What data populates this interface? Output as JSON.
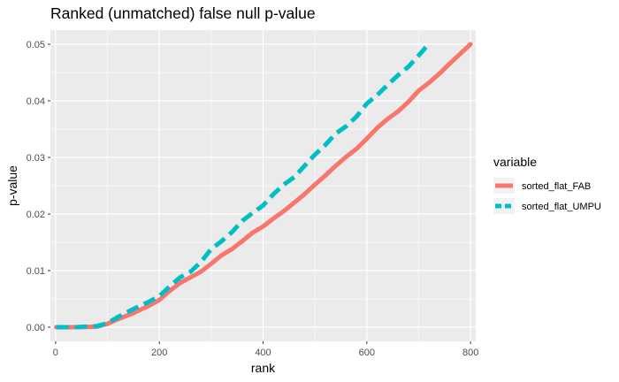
{
  "chart_data": {
    "type": "line",
    "title": "Ranked (unmatched) false null p-value",
    "xlabel": "rank",
    "ylabel": "p-value",
    "xlim": [
      -10,
      810
    ],
    "ylim": [
      -0.0025,
      0.0525
    ],
    "x_ticks": [
      0,
      200,
      400,
      600,
      800
    ],
    "x_tick_labels": [
      "0",
      "200",
      "400",
      "600",
      "800"
    ],
    "y_ticks": [
      0.0,
      0.01,
      0.02,
      0.03,
      0.04,
      0.05
    ],
    "y_tick_labels": [
      "0.00",
      "0.01",
      "0.02",
      "0.03",
      "0.04",
      "0.05"
    ],
    "grid": true,
    "legend": {
      "title": "variable",
      "position": "right"
    },
    "series": [
      {
        "name": "sorted_flat_FAB",
        "color": "#F8766D",
        "dash": "solid",
        "x": [
          1,
          40,
          80,
          100,
          120,
          150,
          180,
          200,
          220,
          240,
          260,
          280,
          300,
          320,
          340,
          360,
          380,
          400,
          420,
          440,
          460,
          480,
          500,
          520,
          540,
          560,
          580,
          600,
          620,
          640,
          660,
          680,
          700,
          720,
          740,
          760,
          780,
          800
        ],
        "y": [
          0.0,
          0.0,
          0.0001,
          0.0006,
          0.0014,
          0.0025,
          0.0038,
          0.0048,
          0.0064,
          0.0078,
          0.0088,
          0.0098,
          0.0112,
          0.0127,
          0.0138,
          0.0152,
          0.0167,
          0.0178,
          0.0192,
          0.0205,
          0.022,
          0.0235,
          0.0252,
          0.0268,
          0.0285,
          0.0301,
          0.0315,
          0.0333,
          0.0352,
          0.0368,
          0.0381,
          0.0398,
          0.0418,
          0.0432,
          0.0448,
          0.0466,
          0.0483,
          0.05
        ]
      },
      {
        "name": "sorted_flat_UMPU",
        "color": "#00BFC4",
        "dash": "dashed",
        "x": [
          1,
          40,
          80,
          100,
          120,
          150,
          180,
          200,
          220,
          240,
          260,
          280,
          300,
          320,
          340,
          360,
          380,
          400,
          420,
          440,
          460,
          480,
          500,
          520,
          540,
          560,
          580,
          600,
          620,
          640,
          660,
          680,
          700,
          715
        ],
        "y": [
          0.0,
          0.0,
          0.0002,
          0.0007,
          0.0018,
          0.0032,
          0.0045,
          0.0055,
          0.0072,
          0.0088,
          0.0098,
          0.0115,
          0.0138,
          0.0152,
          0.0168,
          0.0188,
          0.0202,
          0.0215,
          0.0235,
          0.0252,
          0.0265,
          0.0285,
          0.0305,
          0.0322,
          0.0342,
          0.0355,
          0.0372,
          0.0395,
          0.041,
          0.0428,
          0.0445,
          0.046,
          0.048,
          0.0496
        ]
      }
    ]
  }
}
